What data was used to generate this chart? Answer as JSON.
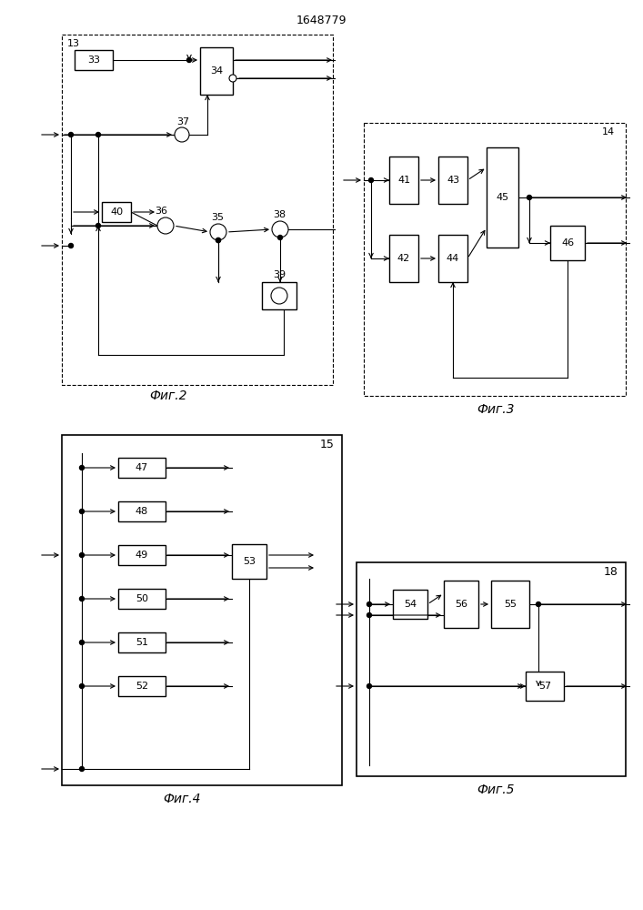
{
  "title": "1648779",
  "caption2": "Фиг.2",
  "caption3": "Фиг.3",
  "caption4": "Фиг.4",
  "caption5": "Фиг.5",
  "bg_color": "#ffffff",
  "box_color": "#000000",
  "line_color": "#000000",
  "font_size": 8,
  "caption_font_size": 10
}
